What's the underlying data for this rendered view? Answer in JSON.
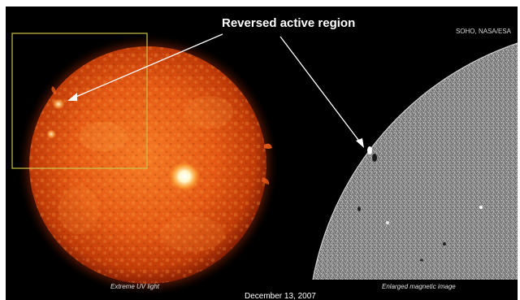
{
  "image": {
    "title_label": "Reversed active region",
    "credit": "SOHO, NASA/ESA",
    "caption_left": "Extreme UV light",
    "caption_right": "Enlarged magnetic image",
    "date": "December 13, 2007"
  },
  "colors": {
    "background": "#000000",
    "sun_core": "#f0641a",
    "sun_edge": "#8a1d04",
    "sun_corona": "#ff5a14",
    "highlight_box": "#c9c24a",
    "magnetogram": "#8c8c8c",
    "annotation": "#ffffff"
  }
}
